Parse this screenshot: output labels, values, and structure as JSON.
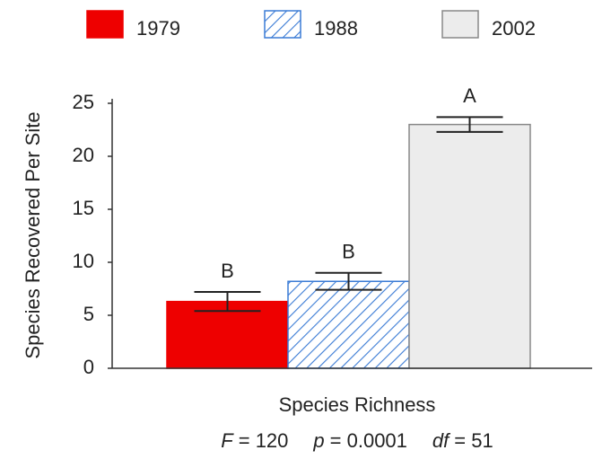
{
  "chart_data": {
    "type": "bar",
    "ylabel": "Species Recovered Per Site",
    "xlabel": "Species Richness",
    "categories": [
      "Species Richness"
    ],
    "series": [
      {
        "name": "1979",
        "color": "#ee0000",
        "pattern": "solid",
        "values": [
          6.3
        ],
        "errors": [
          0.9
        ],
        "letters": [
          "B"
        ]
      },
      {
        "name": "1988",
        "color": "#3a7bd5",
        "pattern": "hatch",
        "values": [
          8.2
        ],
        "errors": [
          0.8
        ],
        "letters": [
          "B"
        ]
      },
      {
        "name": "2002",
        "color": "#ececec",
        "pattern": "solid",
        "values": [
          23.0
        ],
        "errors": [
          0.7
        ],
        "letters": [
          "A"
        ]
      }
    ],
    "ylim": [
      0,
      25
    ],
    "yticks": [
      0,
      5,
      10,
      15,
      20,
      25
    ],
    "legend": "top",
    "stats": [
      {
        "symbol": "F",
        "text": "= 120"
      },
      {
        "symbol": "p",
        "text": "= 0.0001"
      },
      {
        "symbol": "df",
        "text": "= 51"
      }
    ]
  }
}
